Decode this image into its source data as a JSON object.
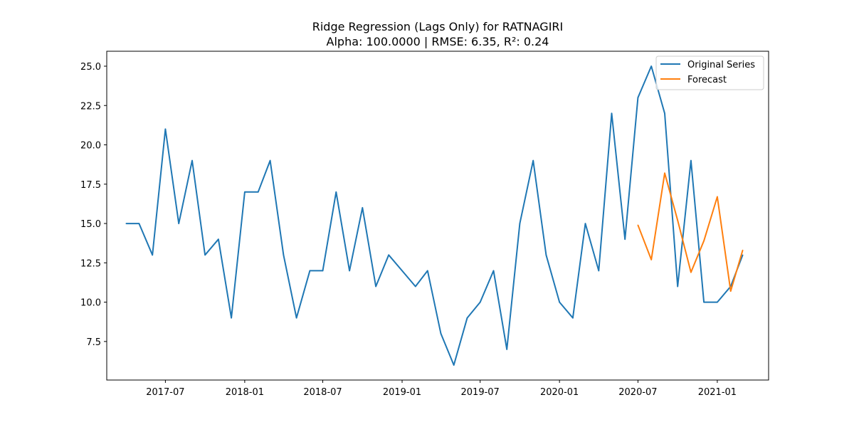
{
  "chart_data": {
    "type": "line",
    "title": "Ridge Regression (Lags Only) for RATNAGIRI",
    "subtitle": "Alpha: 100.0000 | RMSE: 6.35, R²: 0.24",
    "xlabel": "",
    "ylabel": "",
    "x_range": [
      "2017-02-15",
      "2021-04-30"
    ],
    "ylim": [
      5.05,
      25.95
    ],
    "x_ticks": [
      "2017-07",
      "2018-01",
      "2018-07",
      "2019-01",
      "2019-07",
      "2020-01",
      "2020-07",
      "2021-01"
    ],
    "y_ticks": [
      "7.5",
      "10.0",
      "12.5",
      "15.0",
      "17.5",
      "20.0",
      "22.5",
      "25.0"
    ],
    "grid": false,
    "legend_position": "top-right",
    "series": [
      {
        "name": "Original Series",
        "color": "#1f77b4",
        "points": [
          [
            "2017-04-01",
            15
          ],
          [
            "2017-05-01",
            15
          ],
          [
            "2017-06-01",
            13
          ],
          [
            "2017-07-01",
            21
          ],
          [
            "2017-08-01",
            15
          ],
          [
            "2017-09-01",
            19
          ],
          [
            "2017-10-01",
            13
          ],
          [
            "2017-11-01",
            14
          ],
          [
            "2017-12-01",
            9
          ],
          [
            "2018-01-01",
            17
          ],
          [
            "2018-02-01",
            17
          ],
          [
            "2018-03-01",
            19
          ],
          [
            "2018-04-01",
            13
          ],
          [
            "2018-05-01",
            9
          ],
          [
            "2018-06-01",
            12
          ],
          [
            "2018-07-01",
            12
          ],
          [
            "2018-08-01",
            17
          ],
          [
            "2018-09-01",
            12
          ],
          [
            "2018-10-01",
            16
          ],
          [
            "2018-11-01",
            11
          ],
          [
            "2018-12-01",
            13
          ],
          [
            "2019-01-01",
            12
          ],
          [
            "2019-02-01",
            11
          ],
          [
            "2019-03-01",
            12
          ],
          [
            "2019-04-01",
            8
          ],
          [
            "2019-05-01",
            6
          ],
          [
            "2019-06-01",
            9
          ],
          [
            "2019-07-01",
            10
          ],
          [
            "2019-08-01",
            12
          ],
          [
            "2019-09-01",
            7
          ],
          [
            "2019-10-01",
            15
          ],
          [
            "2019-11-01",
            19
          ],
          [
            "2019-12-01",
            13
          ],
          [
            "2020-01-01",
            10
          ],
          [
            "2020-02-01",
            9
          ],
          [
            "2020-03-01",
            15
          ],
          [
            "2020-04-01",
            12
          ],
          [
            "2020-05-01",
            22
          ],
          [
            "2020-06-01",
            14
          ],
          [
            "2020-07-01",
            23
          ],
          [
            "2020-08-01",
            25
          ],
          [
            "2020-09-01",
            22
          ],
          [
            "2020-10-01",
            11
          ],
          [
            "2020-11-01",
            19
          ],
          [
            "2020-12-01",
            10
          ],
          [
            "2021-01-01",
            10
          ],
          [
            "2021-02-01",
            11
          ],
          [
            "2021-03-01",
            13
          ]
        ]
      },
      {
        "name": "Forecast",
        "color": "#ff7f0e",
        "points": [
          [
            "2020-07-01",
            14.9
          ],
          [
            "2020-08-01",
            12.7
          ],
          [
            "2020-09-01",
            18.2
          ],
          [
            "2020-10-01",
            15.2
          ],
          [
            "2020-11-01",
            11.9
          ],
          [
            "2020-12-01",
            13.9
          ],
          [
            "2021-01-01",
            16.7
          ],
          [
            "2021-02-01",
            10.7
          ],
          [
            "2021-03-01",
            13.3
          ]
        ]
      }
    ]
  }
}
